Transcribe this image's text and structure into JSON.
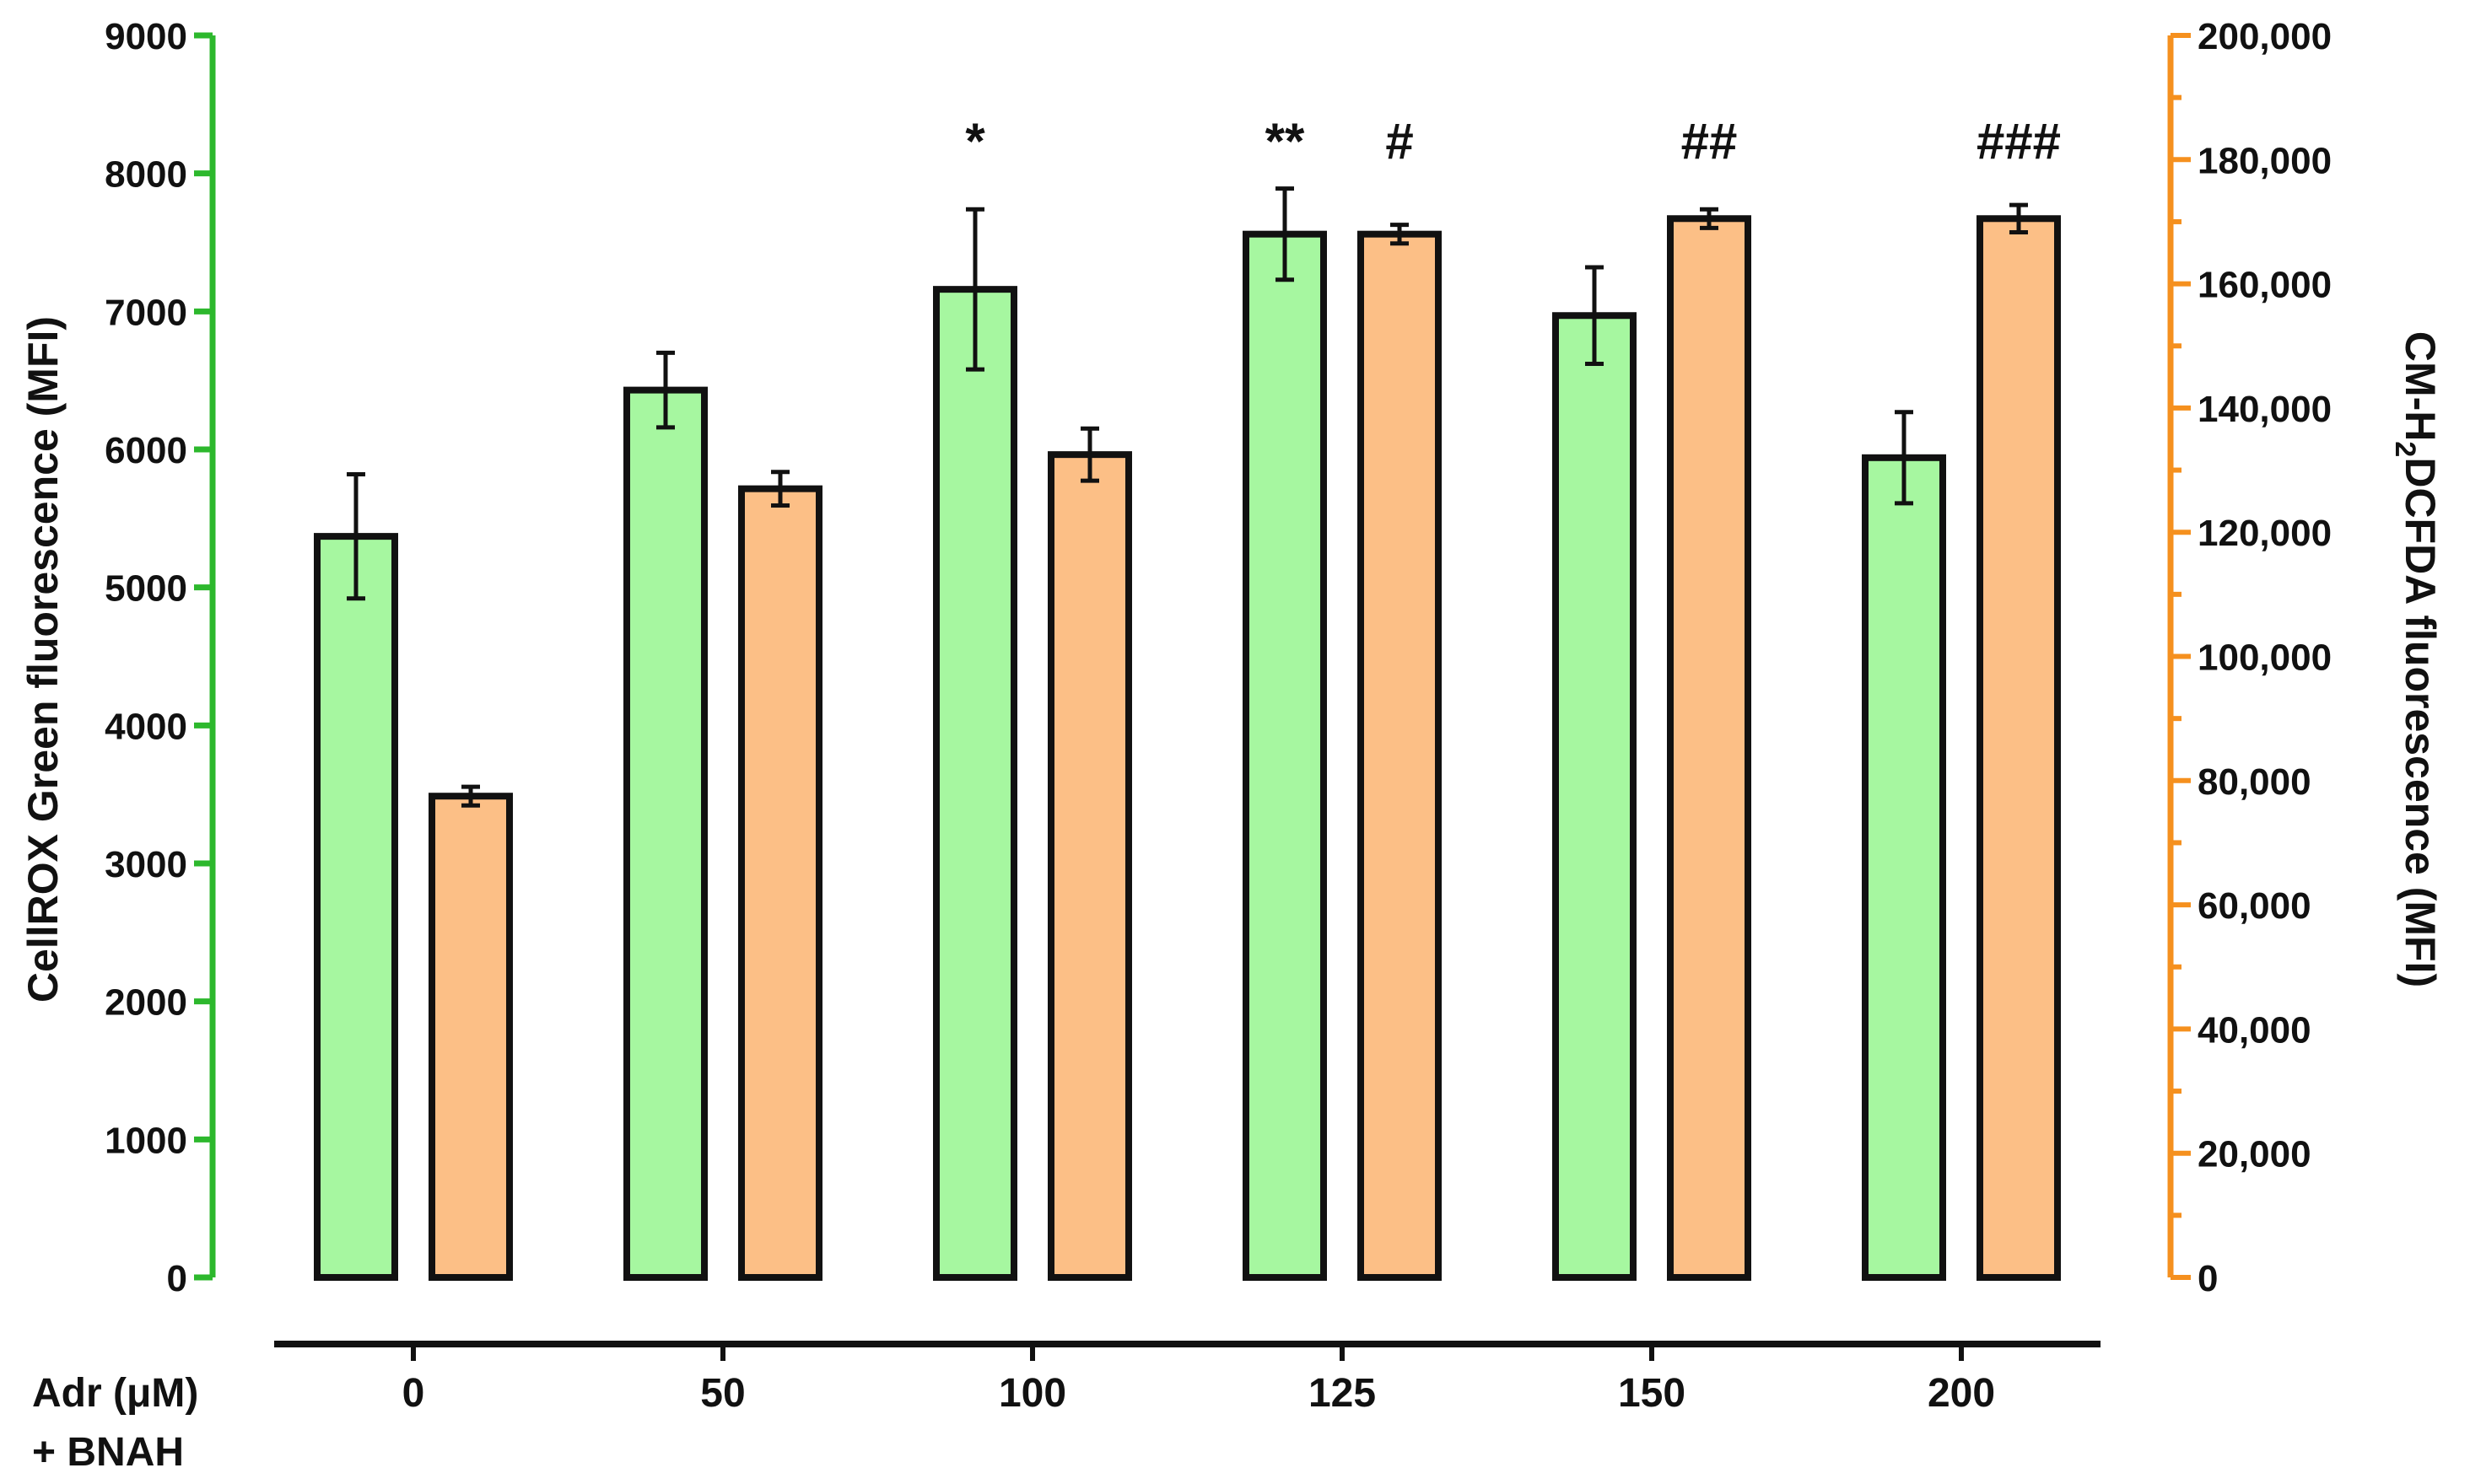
{
  "chart_data": {
    "type": "bar",
    "categories": [
      "0",
      "50",
      "100",
      "125",
      "150",
      "200"
    ],
    "x_label_line1": "Adr (μM)",
    "x_label_line2": "+ BNAH",
    "left_axis": {
      "label": "CellROX Green fluorescence (MFI)",
      "ylim": [
        0,
        9000
      ],
      "ticks": [
        "0",
        "1000",
        "2000",
        "3000",
        "4000",
        "5000",
        "6000",
        "7000",
        "8000",
        "9000"
      ],
      "color": "#2db82d"
    },
    "right_axis": {
      "label_parts": [
        "CM-H",
        "2",
        "DCFDA fluorescence (MFI)"
      ],
      "ylim": [
        0,
        200000
      ],
      "ticks": [
        "0",
        "20,000",
        "40,000",
        "60,000",
        "80,000",
        "100,000",
        "120,000",
        "140,000",
        "160,000",
        "180,000",
        "200,000"
      ],
      "color": "#f5901e"
    },
    "series": [
      {
        "axis": "left",
        "color": "#a6f7a0",
        "values": [
          5370,
          6430,
          7160,
          7560,
          6970,
          5940
        ],
        "errors": [
          450,
          270,
          580,
          330,
          350,
          330
        ]
      },
      {
        "axis": "right",
        "color": "#fcbf86",
        "values": [
          77500,
          127000,
          132500,
          168000,
          170500,
          170500
        ],
        "errors": [
          1500,
          2700,
          4200,
          1500,
          1500,
          2200
        ]
      }
    ],
    "annotations": [
      {
        "category": 2,
        "series": 0,
        "text": "*"
      },
      {
        "category": 3,
        "series": 0,
        "text": "**"
      },
      {
        "category": 3,
        "series": 1,
        "text": "#"
      },
      {
        "category": 4,
        "series": 1,
        "text": "##"
      },
      {
        "category": 5,
        "series": 1,
        "text": "###"
      }
    ]
  }
}
